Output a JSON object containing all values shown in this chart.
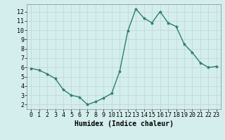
{
  "x": [
    0,
    1,
    2,
    3,
    4,
    5,
    6,
    7,
    8,
    9,
    10,
    11,
    12,
    13,
    14,
    15,
    16,
    17,
    18,
    19,
    20,
    21,
    22,
    23
  ],
  "y": [
    5.9,
    5.7,
    5.3,
    4.8,
    3.6,
    3.0,
    2.8,
    2.0,
    2.3,
    2.7,
    3.2,
    5.6,
    9.9,
    12.3,
    11.3,
    10.8,
    12.0,
    10.8,
    10.4,
    8.5,
    7.6,
    6.5,
    6.0,
    6.1
  ],
  "line_color": "#2e7d6e",
  "marker": "*",
  "marker_size": 3,
  "bg_color": "#d4eeee",
  "grid_color": "#c0d8d8",
  "xlabel": "Humidex (Indice chaleur)",
  "xlabel_fontsize": 7,
  "tick_fontsize": 6,
  "ylim": [
    1.5,
    12.8
  ],
  "xlim": [
    -0.5,
    23.5
  ],
  "yticks": [
    2,
    3,
    4,
    5,
    6,
    7,
    8,
    9,
    10,
    11,
    12
  ],
  "xticks": [
    0,
    1,
    2,
    3,
    4,
    5,
    6,
    7,
    8,
    9,
    10,
    11,
    12,
    13,
    14,
    15,
    16,
    17,
    18,
    19,
    20,
    21,
    22,
    23
  ]
}
